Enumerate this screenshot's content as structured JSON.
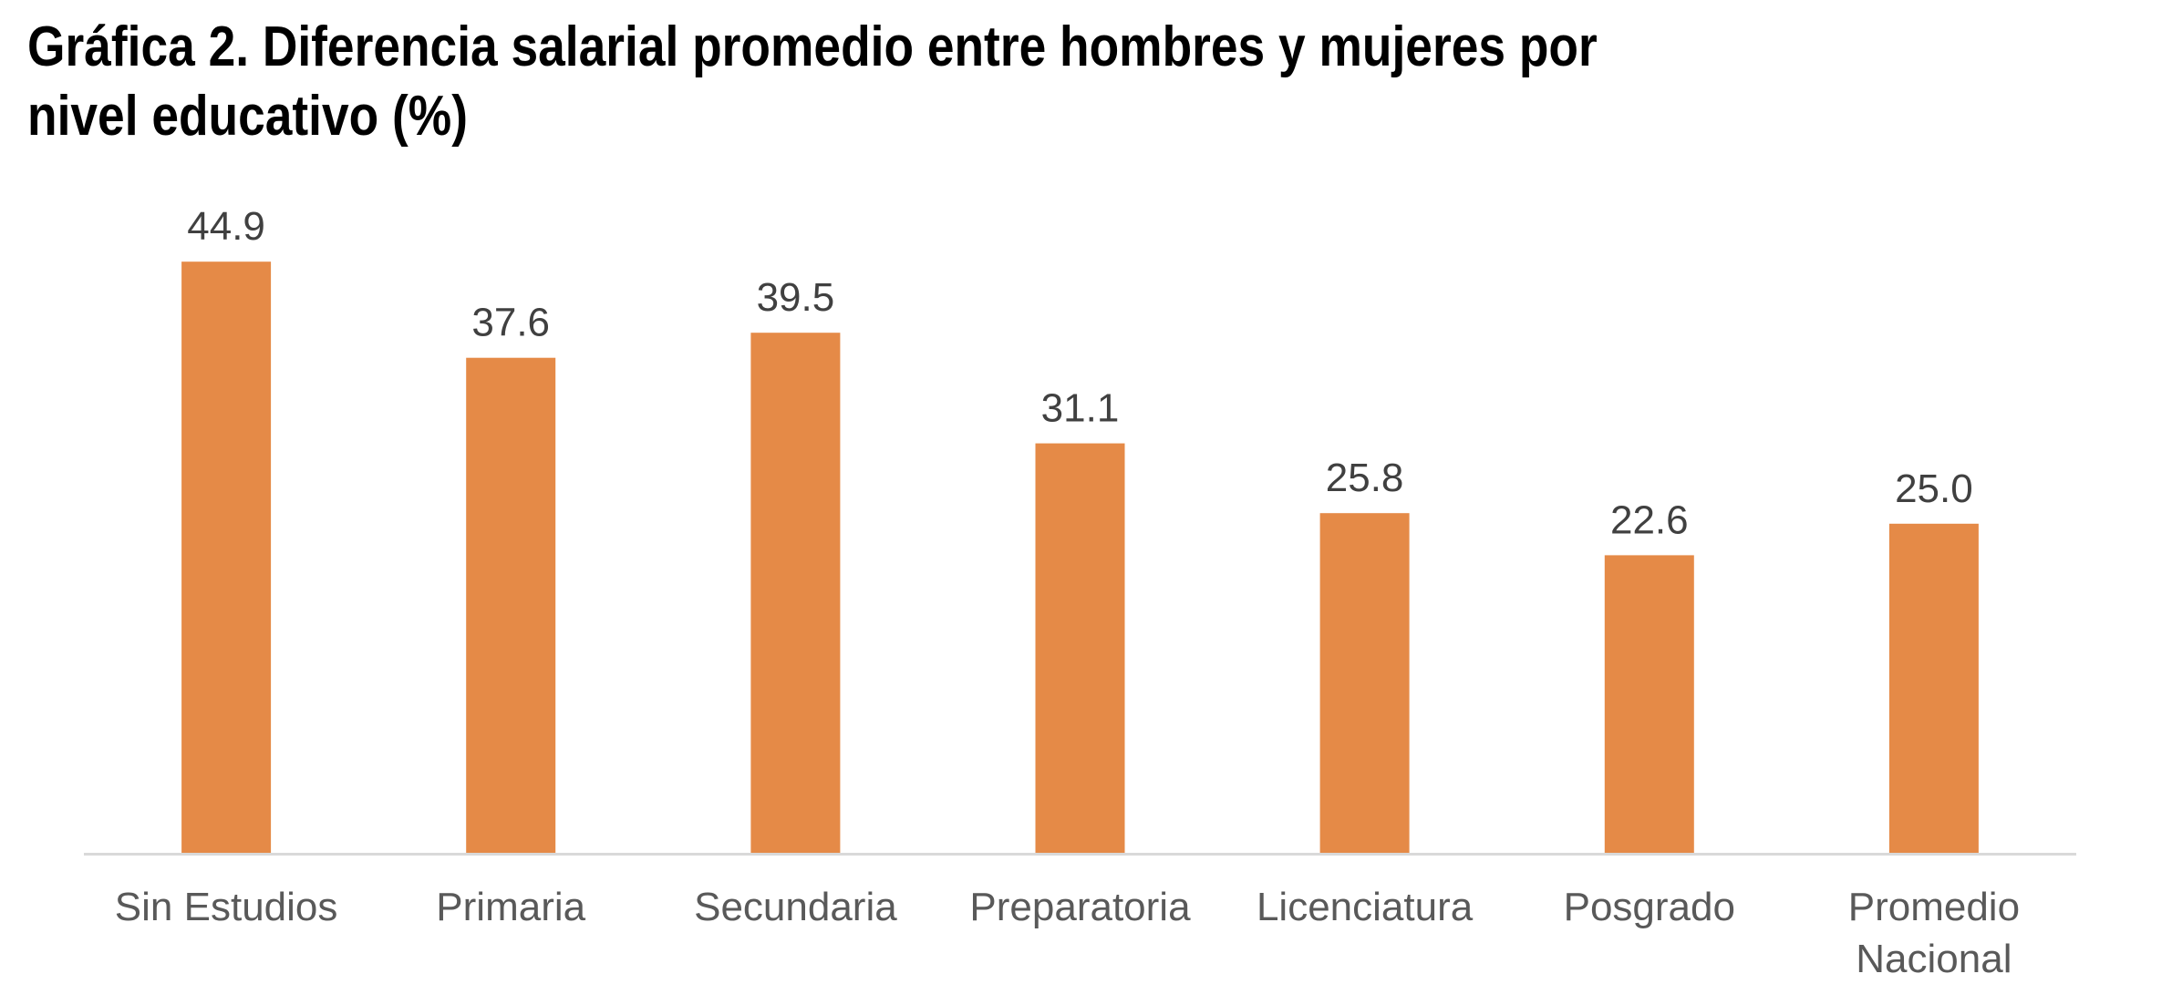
{
  "chart_data": {
    "type": "bar",
    "title": "Gráfica 2. Diferencia salarial promedio entre hombres y mujeres por nivel educativo (%)",
    "categories": [
      [
        "Sin Estudios"
      ],
      [
        "Primaria"
      ],
      [
        "Secundaria"
      ],
      [
        "Preparatoria"
      ],
      [
        "Licenciatura"
      ],
      [
        "Posgrado"
      ],
      [
        "Promedio",
        "Nacional"
      ]
    ],
    "values": [
      44.9,
      37.6,
      39.5,
      31.1,
      25.8,
      22.6,
      25.0
    ],
    "value_labels": [
      "44.9",
      "37.6",
      "39.5",
      "31.1",
      "25.8",
      "22.6",
      "25.0"
    ],
    "ylim": [
      0,
      50
    ],
    "grid": false,
    "legend": "none",
    "bar_color": "#E58A47",
    "axis_color": "#D9D9D9"
  }
}
